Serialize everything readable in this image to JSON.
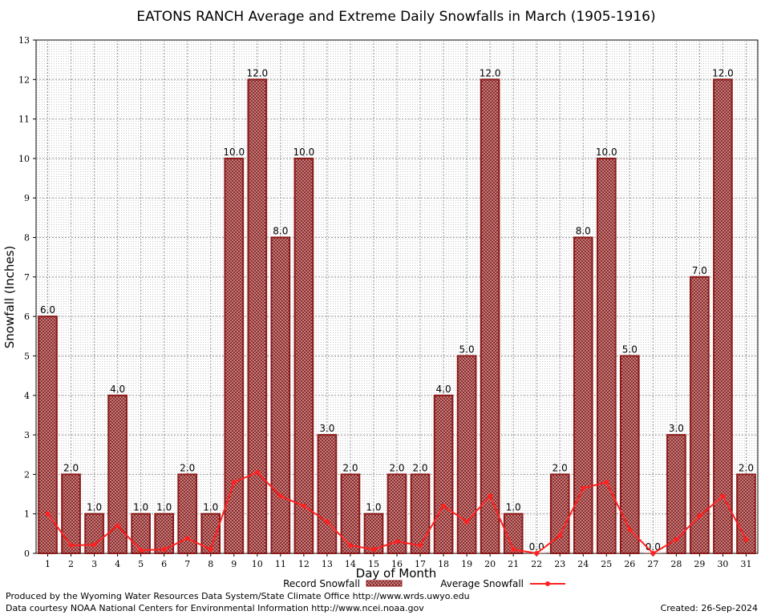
{
  "chart_data": {
    "type": "bar",
    "title": "EATONS RANCH Average and Extreme Daily Snowfalls in March (1905-1916)",
    "xlabel": "Day of Month",
    "ylabel": "Snowfall (Inches)",
    "ylim": [
      0,
      13
    ],
    "yticks": [
      0,
      1,
      2,
      3,
      4,
      5,
      6,
      7,
      8,
      9,
      10,
      11,
      12,
      13
    ],
    "grid": true,
    "categories": [
      "1",
      "2",
      "3",
      "4",
      "5",
      "6",
      "7",
      "8",
      "9",
      "10",
      "11",
      "12",
      "13",
      "14",
      "15",
      "16",
      "17",
      "18",
      "19",
      "20",
      "21",
      "22",
      "23",
      "24",
      "25",
      "26",
      "27",
      "28",
      "29",
      "30",
      "31"
    ],
    "series": [
      {
        "name": "Record Snowfall",
        "kind": "bar",
        "color": "#8b1a1a",
        "values": [
          6,
          2,
          1,
          4,
          1,
          1,
          2,
          1,
          10,
          12,
          8,
          10,
          3,
          2,
          1,
          2,
          2,
          4,
          5,
          12,
          1,
          0,
          2,
          8,
          10,
          5,
          0,
          3,
          7,
          12,
          2
        ],
        "labels": [
          "6.0",
          "2.0",
          "1.0",
          "4.0",
          "1.0",
          "1.0",
          "2.0",
          "1.0",
          "10.0",
          "12.0",
          "8.0",
          "10.0",
          "3.0",
          "2.0",
          "1.0",
          "2.0",
          "2.0",
          "4.0",
          "5.0",
          "12.0",
          "1.0",
          "0.0",
          "2.0",
          "8.0",
          "10.0",
          "5.0",
          "0.0",
          "3.0",
          "7.0",
          "12.0",
          "2.0"
        ]
      },
      {
        "name": "Average Snowfall",
        "kind": "line",
        "color": "#ff2020",
        "values": [
          1.0,
          0.2,
          0.22,
          0.7,
          0.08,
          0.1,
          0.38,
          0.1,
          1.8,
          2.05,
          1.45,
          1.2,
          0.8,
          0.2,
          0.1,
          0.3,
          0.2,
          1.2,
          0.8,
          1.45,
          0.1,
          0.0,
          0.45,
          1.65,
          1.8,
          0.6,
          0.0,
          0.35,
          0.95,
          1.45,
          0.35
        ]
      }
    ],
    "legend": [
      "Record Snowfall",
      "Average Snowfall"
    ],
    "legend_position": "bottom-center"
  },
  "footer": {
    "produced_by": "Produced by the Wyoming Water Resources Data System/State Climate Office http://www.wrds.uwyo.edu",
    "courtesy": "Data courtesy NOAA National Centers for Environmental Information http://www.ncei.noaa.gov",
    "created": "Created: 26-Sep-2024"
  }
}
